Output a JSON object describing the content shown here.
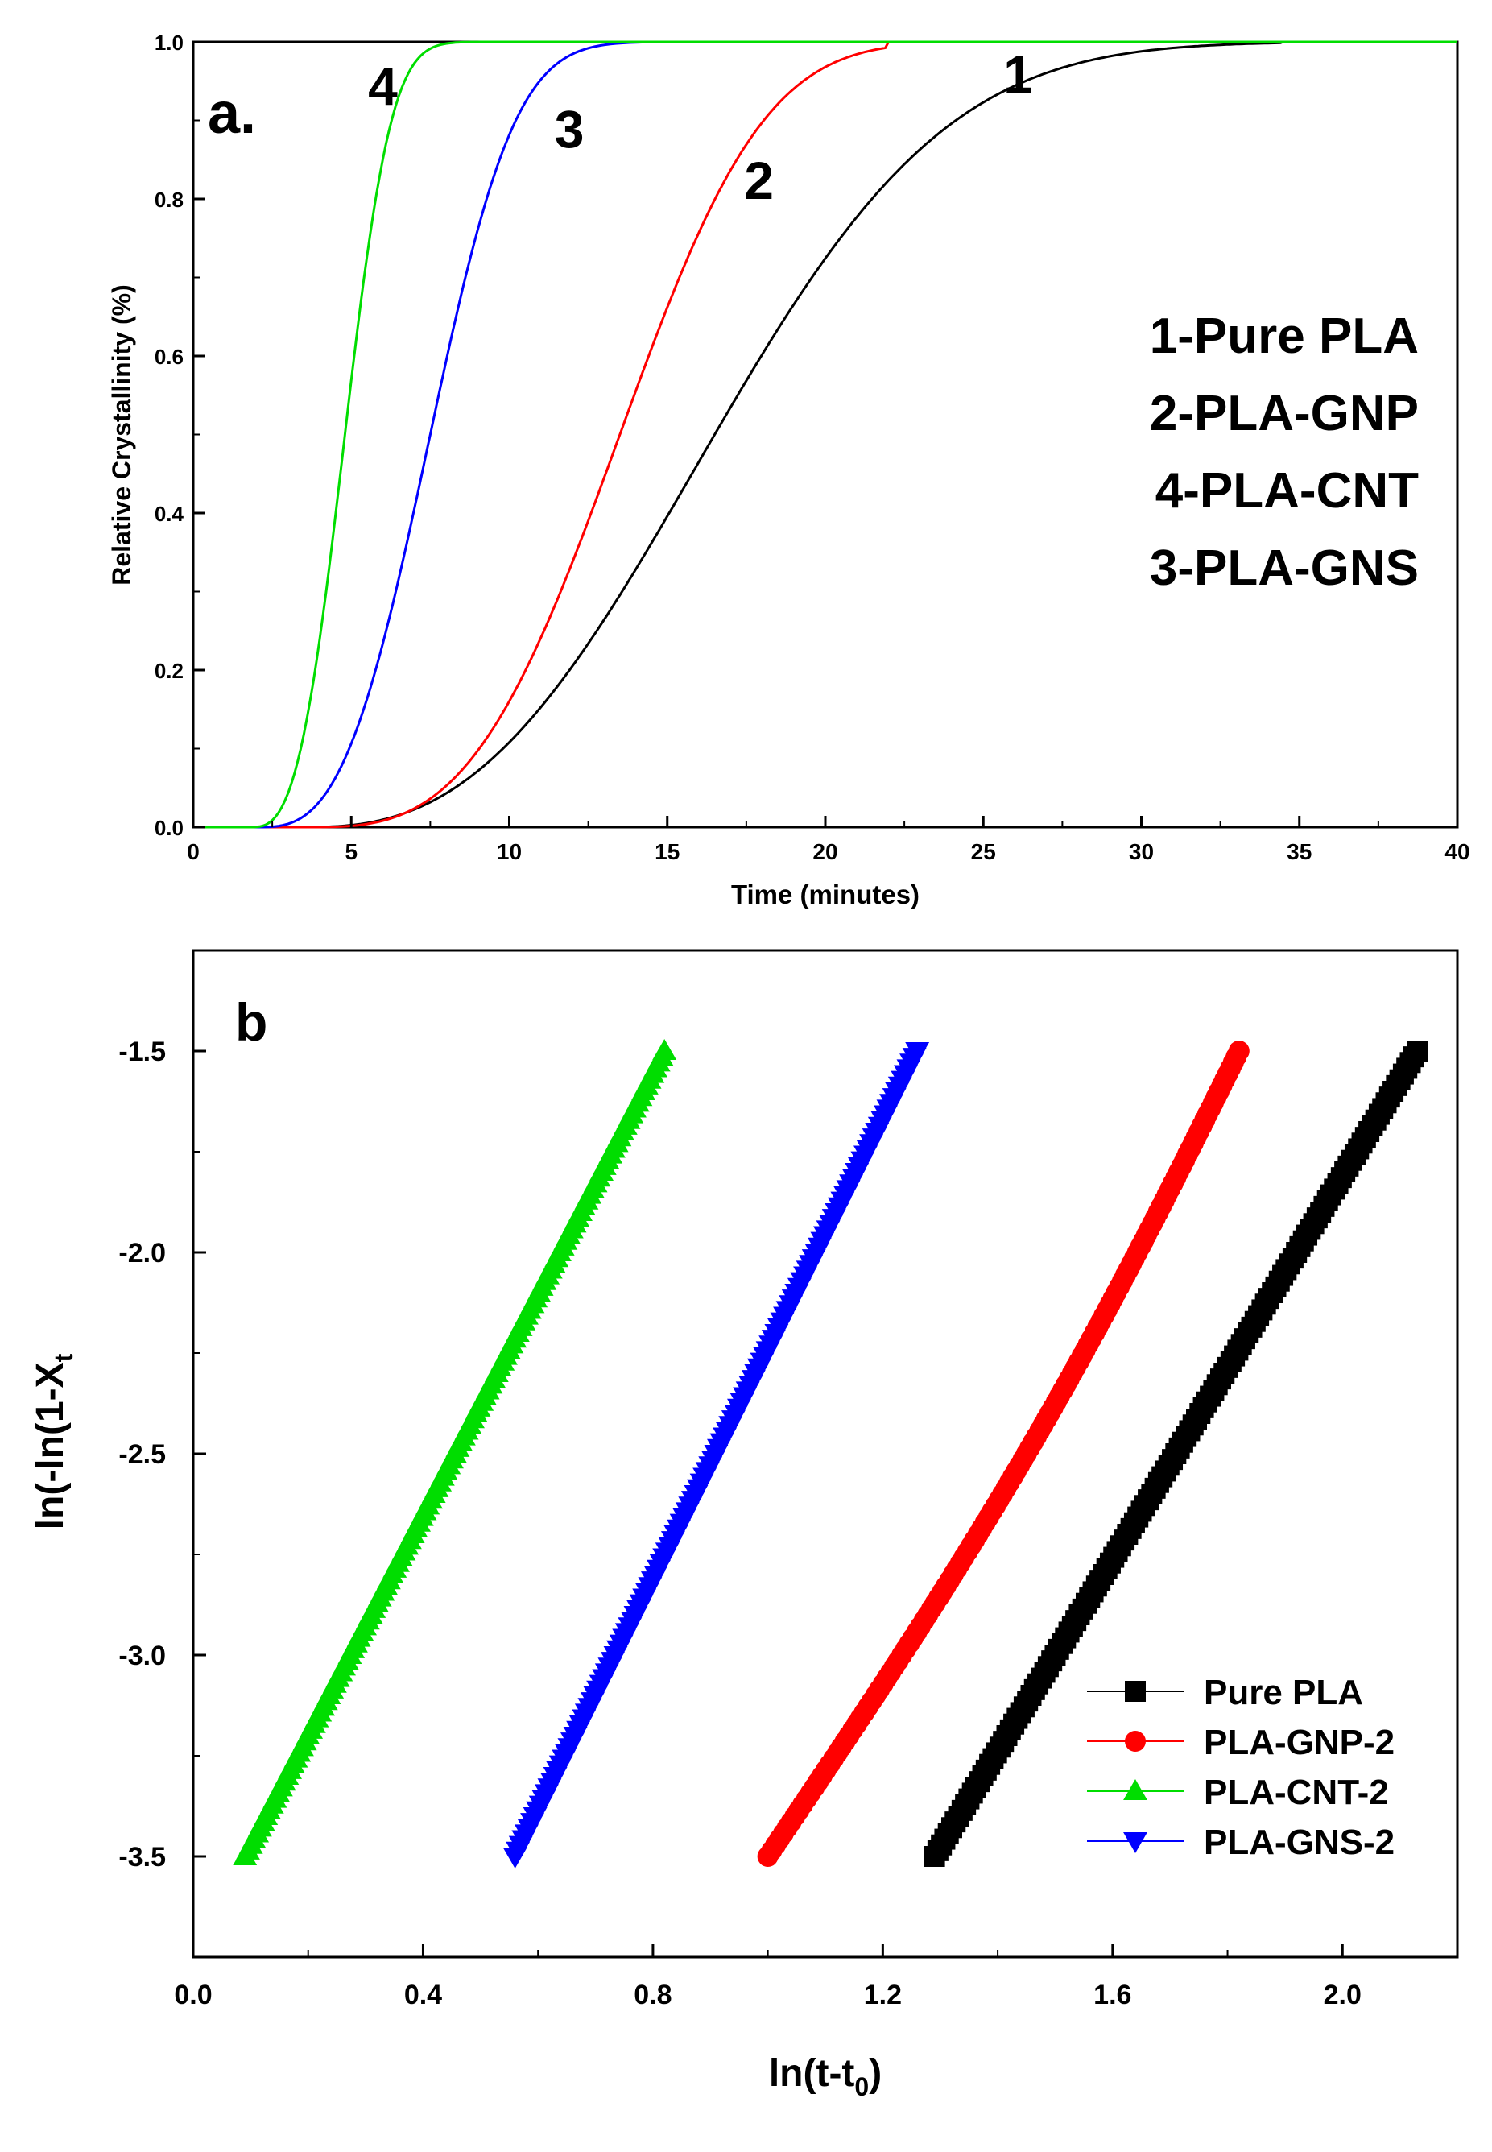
{
  "chart_data": [
    {
      "id": "a",
      "type": "line",
      "panel_label": "a.",
      "xlabel": "Time (minutes)",
      "ylabel": "Relative Crystallinity (%)",
      "xlim": [
        0,
        40
      ],
      "ylim": [
        0,
        1.0
      ],
      "x_ticks": [
        0,
        5,
        10,
        15,
        20,
        25,
        30,
        35,
        40
      ],
      "x_tick_labels": [
        "0",
        "5",
        "10",
        "15",
        "20",
        "25",
        "30",
        "35",
        "40"
      ],
      "y_ticks": [
        0,
        0.2,
        0.4,
        0.6,
        0.8,
        1.0
      ],
      "y_tick_labels": [
        "0.0",
        "0.2",
        "0.4",
        "0.6",
        "0.8",
        "1.0"
      ],
      "grid": false,
      "legend_lines": [
        "1-Pure PLA",
        "2-PLA-GNP",
        "4-PLA-CNT",
        "3-PLA-GNS"
      ],
      "legend_position": "right",
      "series": [
        {
          "name": "1",
          "color": "#000000",
          "t0": 3.5,
          "end": 34.5,
          "mid": 16.5,
          "n": 2.6,
          "label": "1",
          "label_at": [
            26.1,
            0.935
          ],
          "points": [
            [
              3.5,
              0.0
            ],
            [
              6,
              0.01
            ],
            [
              8,
              0.04
            ],
            [
              10,
              0.09
            ],
            [
              12,
              0.17
            ],
            [
              14,
              0.29
            ],
            [
              16,
              0.43
            ],
            [
              18,
              0.57
            ],
            [
              20,
              0.7
            ],
            [
              22,
              0.8
            ],
            [
              24,
              0.88
            ],
            [
              26,
              0.93
            ],
            [
              28,
              0.965
            ],
            [
              30,
              0.985
            ],
            [
              32,
              0.995
            ],
            [
              34.5,
              1.0
            ],
            [
              40,
              1.0
            ]
          ]
        },
        {
          "name": "2",
          "color": "#ff0000",
          "t0": 3.5,
          "end": 22,
          "mid": 13.5,
          "n": 3.2,
          "label": "2",
          "label_at": [
            17.9,
            0.8
          ],
          "points": [
            [
              3.5,
              0.0
            ],
            [
              6,
              0.01
            ],
            [
              8,
              0.04
            ],
            [
              10,
              0.12
            ],
            [
              11,
              0.19
            ],
            [
              12,
              0.3
            ],
            [
              13,
              0.44
            ],
            [
              14,
              0.58
            ],
            [
              15,
              0.71
            ],
            [
              16,
              0.82
            ],
            [
              17,
              0.9
            ],
            [
              18,
              0.95
            ],
            [
              19,
              0.98
            ],
            [
              20,
              0.995
            ],
            [
              22,
              1.0
            ],
            [
              40,
              1.0
            ]
          ]
        },
        {
          "name": "3",
          "color": "#0000ff",
          "t0": 2.0,
          "end": 15,
          "mid": 7.5,
          "n": 3.0,
          "label": "3",
          "label_at": [
            11.9,
            0.865
          ],
          "points": [
            [
              2,
              0.0
            ],
            [
              3,
              0.005
            ],
            [
              4,
              0.03
            ],
            [
              5,
              0.09
            ],
            [
              6,
              0.2
            ],
            [
              7,
              0.38
            ],
            [
              8,
              0.58
            ],
            [
              9,
              0.76
            ],
            [
              10,
              0.88
            ],
            [
              11,
              0.95
            ],
            [
              12,
              0.98
            ],
            [
              13,
              0.995
            ],
            [
              15,
              1.0
            ],
            [
              40,
              1.0
            ]
          ]
        },
        {
          "name": "4",
          "color": "#00dd00",
          "t0": 1.8,
          "end": 10,
          "mid": 4.8,
          "n": 3.0,
          "label": "4",
          "label_at": [
            6.0,
            0.92
          ],
          "points": [
            [
              1.8,
              0.0
            ],
            [
              2.5,
              0.01
            ],
            [
              3,
              0.04
            ],
            [
              3.5,
              0.1
            ],
            [
              4,
              0.22
            ],
            [
              4.5,
              0.4
            ],
            [
              5,
              0.58
            ],
            [
              5.5,
              0.73
            ],
            [
              6,
              0.85
            ],
            [
              6.5,
              0.92
            ],
            [
              7,
              0.96
            ],
            [
              8,
              0.99
            ],
            [
              9,
              0.998
            ],
            [
              10,
              1.0
            ],
            [
              40,
              1.0
            ]
          ]
        }
      ]
    },
    {
      "id": "b",
      "type": "scatter",
      "panel_label": "b",
      "xlabel": "ln(t-t",
      "xlabel_sub": "0",
      "xlabel_end": ")",
      "ylabel": "ln(-ln(1-X",
      "ylabel_sub": "t",
      "xlim": [
        0.0,
        2.2
      ],
      "ylim": [
        -3.75,
        -1.25
      ],
      "x_ticks": [
        0.0,
        0.4,
        0.8,
        1.2,
        1.6,
        2.0
      ],
      "x_tick_labels": [
        "0.0",
        "0.4",
        "0.8",
        "1.2",
        "1.6",
        "2.0"
      ],
      "y_ticks": [
        -1.5,
        -2.0,
        -2.5,
        -3.0,
        -3.5
      ],
      "y_tick_labels": [
        "-1.5",
        "-2.0",
        "-2.5",
        "-3.0",
        "-3.5"
      ],
      "grid": false,
      "legend_position": "bottom-right",
      "series": [
        {
          "name": "Pure PLA",
          "color": "#000000",
          "marker": "square",
          "x": [
            1.29,
            2.13
          ],
          "y": [
            -3.5,
            -1.5
          ]
        },
        {
          "name": "PLA-GNP-2",
          "color": "#ff0000",
          "marker": "circle",
          "x": [
            1.0,
            1.82
          ],
          "y": [
            -3.5,
            -1.5
          ],
          "curve": 0.04
        },
        {
          "name": "PLA-CNT-2",
          "color": "#00dd00",
          "marker": "triangle-up",
          "x": [
            0.09,
            0.82
          ],
          "y": [
            -3.5,
            -1.5
          ]
        },
        {
          "name": "PLA-GNS-2",
          "color": "#0000ff",
          "marker": "triangle-down",
          "x": [
            0.56,
            1.26
          ],
          "y": [
            -3.5,
            -1.5
          ]
        }
      ]
    }
  ]
}
